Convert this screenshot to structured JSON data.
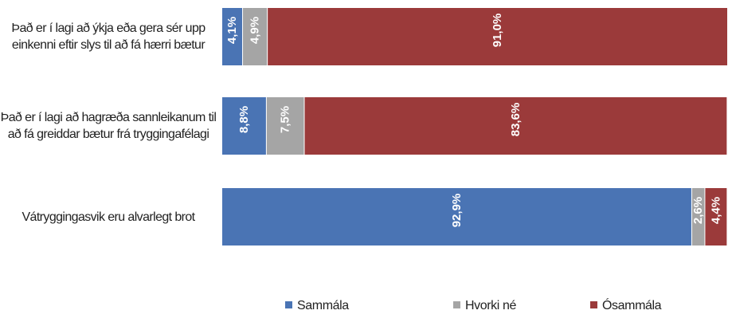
{
  "chart_data": {
    "type": "stacked-bar-horizontal",
    "categories": [
      "Það er í lagi að ýkja eða gera sér upp einkenni eftir slys til að fá hærri bætur",
      "Það er í lagi að hagræða sannleikanum til að fá greiddar bætur frá tryggingafélagi",
      "Vátryggingasvik eru alvarlegt brot"
    ],
    "series": [
      {
        "name": "Sammála",
        "color": "#4a74b4",
        "values": [
          4.1,
          8.8,
          92.9
        ],
        "value_labels": [
          "4,1%",
          "8,8%",
          "92,9%"
        ]
      },
      {
        "name": "Hvorki né",
        "color": "#a5a5a5",
        "values": [
          4.9,
          7.5,
          2.6
        ],
        "value_labels": [
          "4,9%",
          "7,5%",
          "2,6%"
        ]
      },
      {
        "name": "Ósammála",
        "color": "#9b3a3a",
        "values": [
          91.0,
          83.6,
          4.4
        ],
        "value_labels": [
          "91,0%",
          "83,6%",
          "4,4%"
        ]
      }
    ],
    "xlim": [
      0,
      100
    ],
    "legend": "bottom"
  }
}
